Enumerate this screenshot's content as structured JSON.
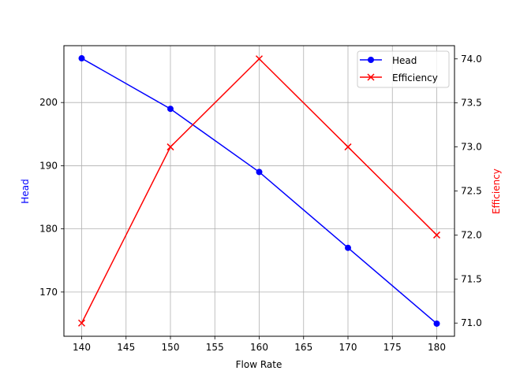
{
  "chart_data": {
    "type": "line",
    "title": "",
    "xlabel": "Flow Rate",
    "ylabel": "Head",
    "y2label": "Efficiency",
    "x": [
      140,
      150,
      160,
      170,
      180
    ],
    "xlim": [
      138,
      182
    ],
    "x_ticks": [
      "140",
      "145",
      "150",
      "155",
      "160",
      "165",
      "170",
      "175",
      "180"
    ],
    "ylim_left": [
      163,
      209
    ],
    "y_ticks_left": [
      "170",
      "180",
      "190",
      "200"
    ],
    "ylim_right": [
      70.85,
      74.15
    ],
    "y_ticks_right": [
      "71.0",
      "71.5",
      "72.0",
      "72.5",
      "73.0",
      "73.5",
      "74.0"
    ],
    "grid": true,
    "legend_position": "upper right",
    "series": [
      {
        "name": "Head",
        "axis": "left",
        "color": "#0000ff",
        "marker": "circle",
        "values": [
          207,
          199,
          189,
          177,
          165
        ]
      },
      {
        "name": "Efficiency",
        "axis": "right",
        "color": "#ff0000",
        "marker": "x",
        "values": [
          71,
          73,
          74,
          73,
          72
        ]
      }
    ]
  },
  "legend": {
    "items": [
      {
        "label": "Head",
        "color": "#0000ff"
      },
      {
        "label": "Efficiency",
        "color": "#ff0000"
      }
    ]
  }
}
